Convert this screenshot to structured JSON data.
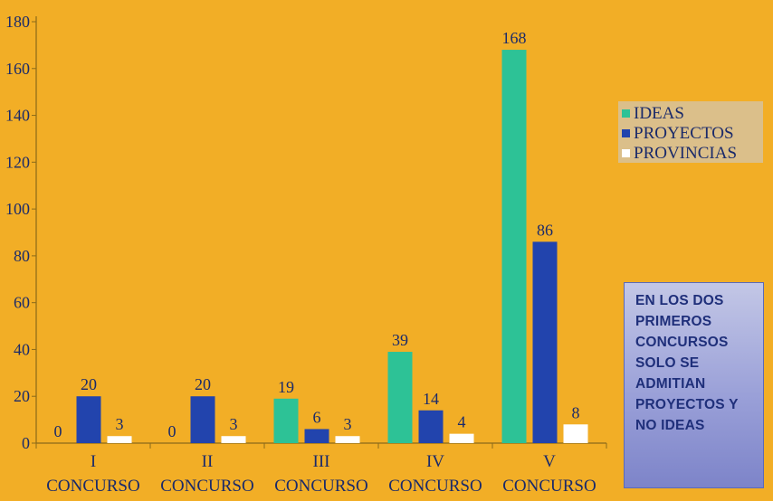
{
  "chart_data": {
    "type": "bar",
    "categories": [
      [
        "I",
        "CONCURSO"
      ],
      [
        "II",
        "CONCURSO"
      ],
      [
        "III",
        "CONCURSO"
      ],
      [
        "IV",
        "CONCURSO"
      ],
      [
        "V",
        "CONCURSO"
      ]
    ],
    "series": [
      {
        "name": "IDEAS",
        "values": [
          0,
          0,
          19,
          39,
          168
        ],
        "color": "#2dc296"
      },
      {
        "name": "PROYECTOS",
        "values": [
          20,
          20,
          6,
          14,
          86
        ],
        "color": "#2244ad"
      },
      {
        "name": "PROVINCIAS",
        "values": [
          3,
          3,
          3,
          4,
          8
        ],
        "color": "#ffffff"
      }
    ],
    "ylim": [
      0,
      180
    ],
    "yticks": [
      0,
      20,
      40,
      60,
      80,
      100,
      120,
      140,
      160,
      180
    ],
    "grid": false,
    "legend_position": "right",
    "background": "#f2ae26",
    "label_color": "#1a2a6a"
  },
  "legend": {
    "items": [
      "IDEAS",
      "PROYECTOS",
      "PROVINCIAS"
    ]
  },
  "note": {
    "text": "EN LOS DOS\nPRIMEROS\nCONCURSOS\nSOLO  SE\nADMITIAN\nPROYECTOS Y\nNO IDEAS"
  }
}
